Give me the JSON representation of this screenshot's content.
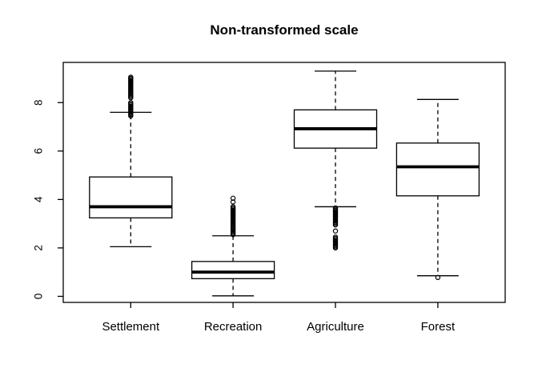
{
  "chart_data": {
    "type": "boxplot",
    "title": "Non-transformed scale",
    "xlabel": "",
    "ylabel": "",
    "categories": [
      "Settlement",
      "Recreation",
      "Agriculture",
      "Forest"
    ],
    "yticks": [
      0,
      2,
      4,
      6,
      8
    ],
    "ylim": [
      -0.25,
      9.66
    ],
    "grid": false,
    "legend": "none",
    "box_color": "#000000",
    "fill_color": "#ffffff",
    "series": [
      {
        "name": "Settlement",
        "whisker_low": 2.05,
        "q1": 3.24,
        "median": 3.7,
        "q3": 4.93,
        "whisker_high": 7.6,
        "outliers": [
          7.45,
          7.5,
          7.55,
          7.6,
          7.65,
          7.7,
          7.75,
          7.8,
          7.85,
          7.9,
          7.95,
          8.0,
          8.2,
          8.25,
          8.3,
          8.35,
          8.4,
          8.45,
          8.5,
          8.55,
          8.6,
          8.65,
          8.7,
          8.75,
          8.8,
          8.85,
          8.9,
          8.95,
          9.0,
          9.05
        ]
      },
      {
        "name": "Recreation",
        "whisker_low": 0.02,
        "q1": 0.73,
        "median": 1.0,
        "q3": 1.44,
        "whisker_high": 2.5,
        "outliers": [
          2.55,
          2.6,
          2.65,
          2.7,
          2.75,
          2.8,
          2.85,
          2.9,
          2.95,
          3.0,
          3.05,
          3.1,
          3.15,
          3.2,
          3.25,
          3.3,
          3.35,
          3.4,
          3.45,
          3.5,
          3.55,
          3.6,
          3.65,
          3.7,
          3.9,
          4.05
        ]
      },
      {
        "name": "Agriculture",
        "whisker_low": 3.7,
        "q1": 6.12,
        "median": 6.92,
        "q3": 7.7,
        "whisker_high": 9.3,
        "outliers": [
          2.95,
          3.0,
          3.05,
          3.1,
          3.15,
          3.2,
          3.25,
          3.3,
          3.35,
          3.4,
          3.45,
          3.5,
          3.55,
          3.6,
          3.65,
          2.7,
          2.0,
          2.05,
          2.1,
          2.15,
          2.2,
          2.25,
          2.3,
          2.35,
          2.4,
          2.45
        ]
      },
      {
        "name": "Forest",
        "whisker_low": 0.85,
        "q1": 4.15,
        "median": 5.35,
        "q3": 6.33,
        "whisker_high": 8.13,
        "outliers": [
          0.78
        ]
      }
    ]
  }
}
